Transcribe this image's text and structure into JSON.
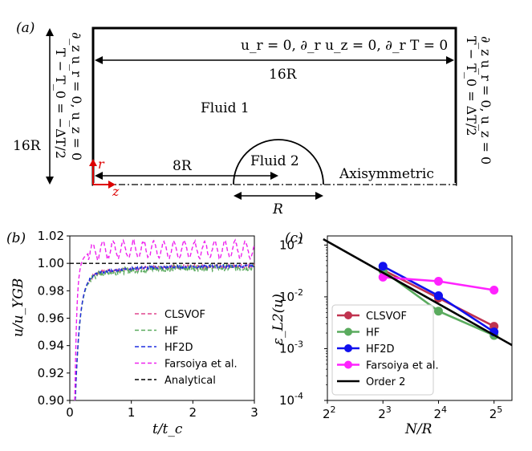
{
  "panel_a": {
    "label": "(a)",
    "top_bc": "u_r = 0, ∂_r u_z = 0, ∂_r T = 0",
    "width_label": "16R",
    "height_label": "16R",
    "left_bc": "∂_z u_r = 0, u_z = 0",
    "left_temp": "T − T_0 = −ΔT/2",
    "right_bc": "∂_z u_r = 0, u_z = 0",
    "right_temp": "T − T_0 = ΔT/2",
    "fluid1": "Fluid 1",
    "fluid2": "Fluid 2",
    "distance_label": "8R",
    "radius_label": "R",
    "axis_label": "Axisymmetric",
    "r_axis": "r",
    "z_axis": "z"
  },
  "chart_data": [
    {
      "panel": "(b)",
      "type": "line",
      "xlabel": "t/t_c",
      "ylabel": "u/u_YGB",
      "xlim": [
        0,
        3
      ],
      "ylim": [
        0.9,
        1.02
      ],
      "xticks": [
        0,
        1,
        2,
        3
      ],
      "yticks": [
        0.9,
        0.92,
        0.94,
        0.96,
        0.98,
        1.0,
        1.02
      ],
      "xtick_labels": [
        "0",
        "1",
        "2",
        "3"
      ],
      "ytick_labels": [
        "0.90",
        "0.92",
        "0.94",
        "0.96",
        "0.98",
        "1.00",
        "1.02"
      ],
      "legend": "lower-right",
      "series": [
        {
          "name": "CLSVOF",
          "color": "#e0458e",
          "style": "dashed",
          "plateau": 0.998,
          "noise": 0.0015
        },
        {
          "name": "HF",
          "color": "#5aab5e",
          "style": "dashed",
          "plateau": 0.997,
          "noise": 0.0025
        },
        {
          "name": "HF2D",
          "color": "#1f2fe0",
          "style": "dashed",
          "plateau": 0.998,
          "noise": 0.001
        },
        {
          "name": "Farsoiya et al.",
          "color": "#ee22ee",
          "style": "dashed",
          "plateau": 1.01,
          "noise": 0.006
        },
        {
          "name": "Analytical",
          "color": "#000000",
          "style": "dashed",
          "plateau": 1.0,
          "noise": 0
        }
      ]
    },
    {
      "panel": "(c)",
      "type": "line",
      "xlabel": "N/R",
      "ylabel": "ε_L2(u)",
      "xscale": "log2",
      "yscale": "log10",
      "xlim": [
        4,
        40
      ],
      "ylim": [
        0.0001,
        0.15
      ],
      "xtick_labels": [
        "2^2",
        "2^3",
        "2^4",
        "2^5"
      ],
      "ytick_labels": [
        "10^-4",
        "10^-3",
        "10^-2",
        "10^-1"
      ],
      "legend": "lower-left",
      "series": [
        {
          "name": "CLSVOF",
          "color": "#c0334f",
          "x": [
            8,
            16,
            32
          ],
          "y": [
            0.033,
            0.0095,
            0.0027
          ]
        },
        {
          "name": "HF",
          "color": "#5aab5e",
          "x": [
            8,
            16,
            32
          ],
          "y": [
            0.032,
            0.0053,
            0.0018
          ]
        },
        {
          "name": "HF2D",
          "color": "#1010ee",
          "x": [
            8,
            16,
            32
          ],
          "y": [
            0.039,
            0.0105,
            0.0021
          ]
        },
        {
          "name": "Farsoiya et al.",
          "color": "#ff22ff",
          "x": [
            8,
            16,
            32
          ],
          "y": [
            0.024,
            0.02,
            0.0135
          ]
        },
        {
          "name": "Order 2",
          "color": "#000000",
          "x": [
            3.8,
            40
          ],
          "y": [
            0.13,
            0.00117
          ]
        }
      ]
    }
  ]
}
